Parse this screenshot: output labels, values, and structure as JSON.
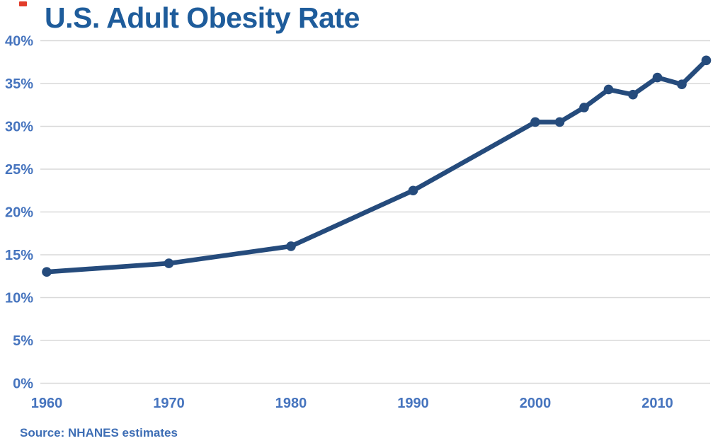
{
  "page": {
    "title": "U.S. Adult Obesity Rate",
    "source_note": "Source: NHANES estimates"
  },
  "colors": {
    "title": "#1e5c9b",
    "axis_labels": "#4674be",
    "line": "#254b7c",
    "gridline": "#d9d9d9",
    "source": "#3e6eb5",
    "background": "#ffffff",
    "corner_mark": "#e23c2a"
  },
  "chart_data": {
    "type": "line",
    "title": "U.S. Adult Obesity Rate",
    "source": "Source: NHANES estimates",
    "x": [
      1960,
      1970,
      1980,
      1990,
      2000,
      2002,
      2004,
      2006,
      2008,
      2010,
      2012,
      2014
    ],
    "values": [
      13,
      14,
      16,
      22.5,
      30.5,
      30.5,
      32.2,
      34.3,
      33.7,
      35.7,
      34.9,
      37.7
    ],
    "units": "percent",
    "x_ticks": [
      1960,
      1970,
      1980,
      1990,
      2000,
      2010
    ],
    "x_tick_labels": [
      "1960",
      "1970",
      "1980",
      "1990",
      "2000",
      "2010"
    ],
    "y_ticks": [
      0,
      5,
      10,
      15,
      20,
      25,
      30,
      35,
      40
    ],
    "y_tick_labels": [
      "0%",
      "5%",
      "10%",
      "15%",
      "20%",
      "25%",
      "30%",
      "35%",
      "40%"
    ],
    "ylim": [
      0,
      40
    ],
    "xlim": [
      1960,
      2014
    ],
    "grid": true,
    "legend": "none",
    "marker": "circle",
    "line_width": 6.6,
    "marker_radius": 6.8
  }
}
